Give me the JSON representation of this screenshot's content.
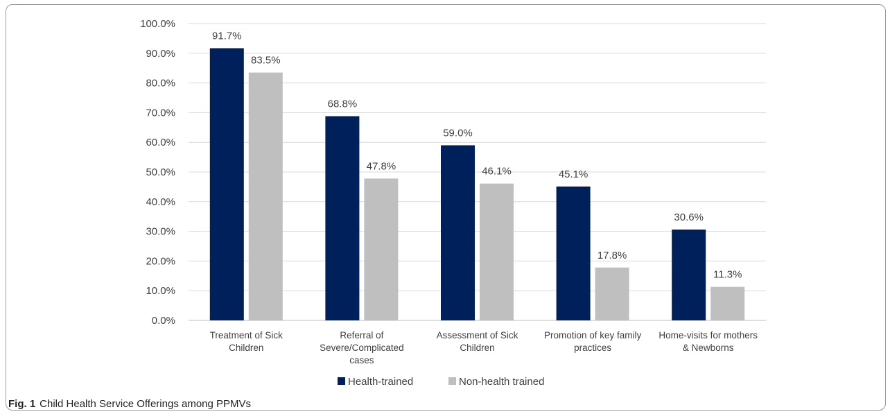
{
  "chart_data": {
    "type": "bar",
    "categories": [
      [
        "Treatment of Sick",
        "Children"
      ],
      [
        "Referral of",
        "Severe/Complicated",
        "cases"
      ],
      [
        "Assessment of Sick",
        "Children"
      ],
      [
        "Promotion of key family",
        "practices"
      ],
      [
        "Home-visits for mothers",
        "& Newborns"
      ]
    ],
    "series": [
      {
        "name": "Health-trained",
        "values": [
          91.7,
          68.8,
          59.0,
          45.1,
          30.6
        ],
        "labels": [
          "91.7%",
          "68.8%",
          "59.0%",
          "45.1%",
          "30.6%"
        ],
        "color": "#00205b"
      },
      {
        "name": "Non-health trained",
        "values": [
          83.5,
          47.8,
          46.1,
          17.8,
          11.3
        ],
        "labels": [
          "83.5%",
          "47.8%",
          "46.1%",
          "17.8%",
          "11.3%"
        ],
        "color": "#bfbfbf"
      }
    ],
    "ylim": [
      0,
      100
    ],
    "yticks": [
      "0.0%",
      "10.0%",
      "20.0%",
      "30.0%",
      "40.0%",
      "50.0%",
      "60.0%",
      "70.0%",
      "80.0%",
      "90.0%",
      "100.0%"
    ],
    "grid": true,
    "legend": "bottom"
  },
  "caption": {
    "fig_label": "Fig. 1",
    "text": "Child Health Service Offerings among PPMVs"
  }
}
